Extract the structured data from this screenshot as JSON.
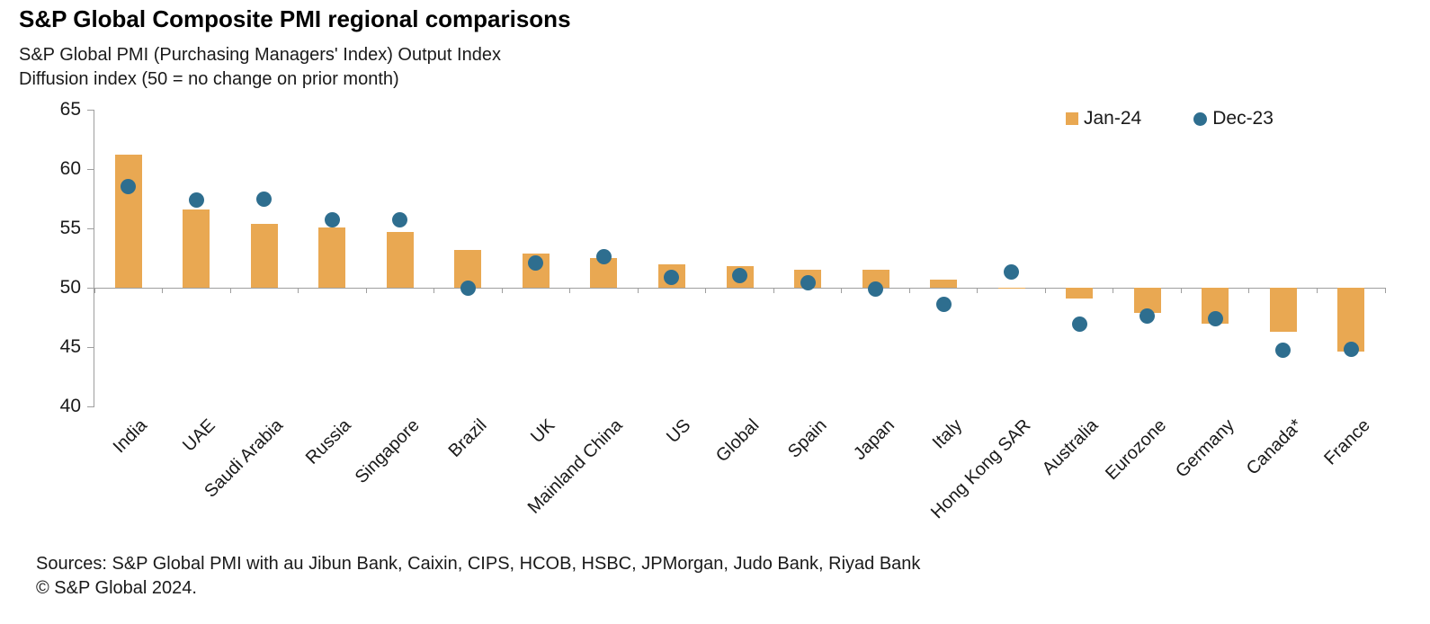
{
  "header": {
    "title": "S&P Global Composite PMI regional comparisons",
    "subtitle1": "S&P Global PMI (Purchasing Managers' Index) Output Index",
    "subtitle2": "Diffusion index (50 = no change on prior month)"
  },
  "footer": {
    "sources": "Sources: S&P Global PMI with au Jibun Bank, Caixin, CIPS, HCOB, HSBC, JPMorgan, Judo Bank, Riyad Bank",
    "copyright": "© S&P Global 2024."
  },
  "colors": {
    "bar": "#E9A852",
    "dot": "#2E6E8F",
    "axis": "#9E9E9E"
  },
  "chart_data": {
    "type": "bar",
    "title": "S&P Global Composite PMI regional comparisons",
    "subtitle": "S&P Global PMI (Purchasing Managers' Index) Output Index",
    "units": "Diffusion index (50 = no change on prior month)",
    "categories": [
      "India",
      "UAE",
      "Saudi Arabia",
      "Russia",
      "Singapore",
      "Brazil",
      "UK",
      "Mainland China",
      "US",
      "Global",
      "Spain",
      "Japan",
      "Italy",
      "Hong Kong SAR",
      "Australia",
      "Eurozone",
      "Germany",
      "Canada*",
      "France"
    ],
    "series": [
      {
        "name": "Jan-24",
        "type": "bar",
        "color": "#E9A852",
        "values": [
          61.2,
          56.6,
          55.4,
          55.1,
          54.7,
          53.2,
          52.9,
          52.5,
          52.0,
          51.8,
          51.5,
          51.5,
          50.7,
          49.9,
          49.1,
          47.9,
          47.0,
          46.3,
          44.6
        ]
      },
      {
        "name": "Dec-23",
        "type": "scatter",
        "color": "#2E6E8F",
        "values": [
          58.5,
          57.4,
          57.5,
          55.7,
          55.7,
          50.0,
          52.1,
          52.6,
          50.9,
          51.0,
          50.4,
          49.9,
          48.6,
          51.3,
          46.9,
          47.6,
          47.4,
          44.7,
          44.8
        ]
      }
    ],
    "baseline": 50,
    "ylim": [
      40,
      65
    ],
    "yticks": [
      40,
      45,
      50,
      55,
      60,
      65
    ],
    "xlabel": "",
    "ylabel": "",
    "grid": false,
    "legend_position": "top-right"
  }
}
